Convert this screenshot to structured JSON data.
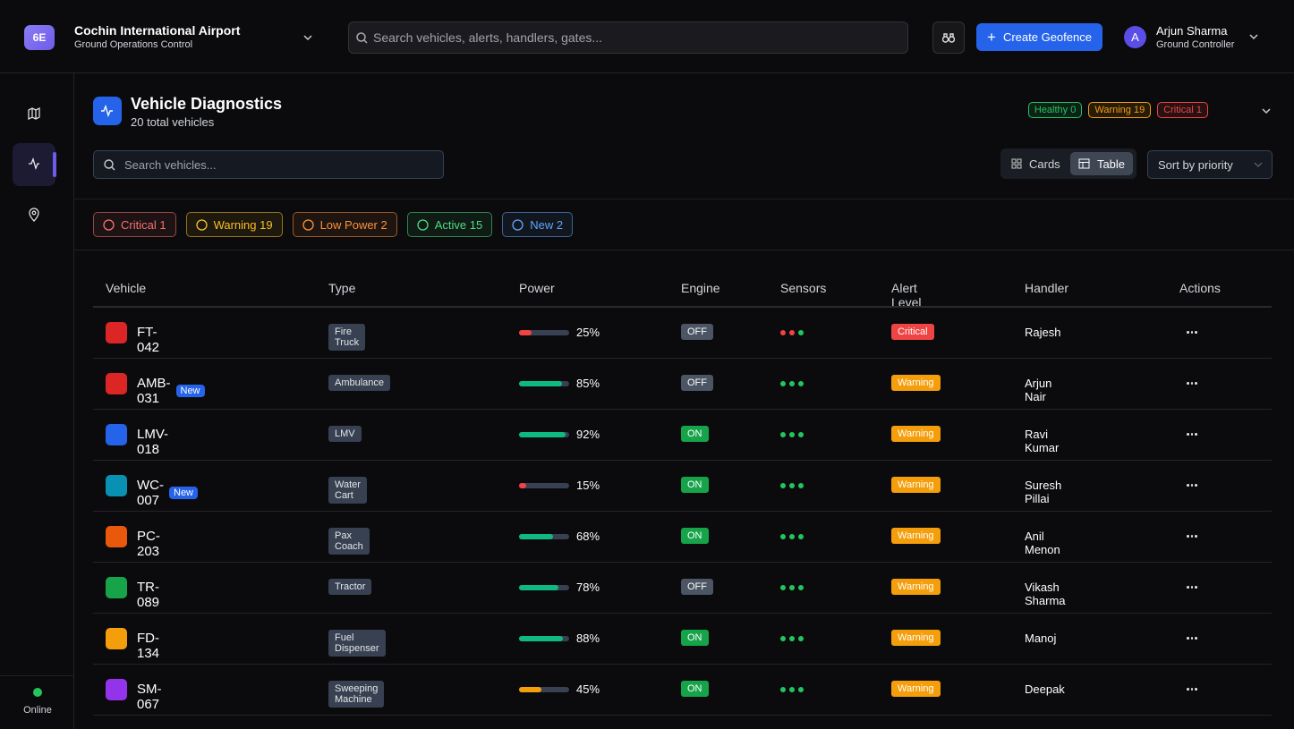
{
  "header": {
    "logo": "6E",
    "airport": "Cochin International Airport",
    "subtitle": "Ground Operations Control",
    "search_placeholder": "Search vehicles, alerts, handlers, gates...",
    "create_button": "Create Geofence",
    "user": {
      "initial": "A",
      "name": "Arjun Sharma",
      "role": "Ground Controller"
    }
  },
  "sidebar": {
    "status": "Online"
  },
  "panel": {
    "title": "Vehicle Diagnostics",
    "subtitle": "20 total vehicles",
    "summary": [
      {
        "label": "Healthy 0",
        "color": "#22c55e"
      },
      {
        "label": "Warning 19",
        "color": "#f59e0b"
      },
      {
        "label": "Critical 1",
        "color": "#ef4444"
      }
    ],
    "search_placeholder": "Search vehicles...",
    "views": [
      "Cards",
      "Table"
    ],
    "sort": "Sort by priority",
    "filters": [
      {
        "label": "Critical 1",
        "color": "#f87171"
      },
      {
        "label": "Warning 19",
        "color": "#fbbf24"
      },
      {
        "label": "Low Power 2",
        "color": "#fb923c"
      },
      {
        "label": "Active 15",
        "color": "#4ade80"
      },
      {
        "label": "New 2",
        "color": "#60a5fa"
      }
    ]
  },
  "table": {
    "columns": [
      "Vehicle",
      "Type",
      "Power",
      "Engine",
      "Sensors",
      "Alert Level",
      "Handler",
      "Actions"
    ],
    "rows": [
      {
        "vehicle": "FT-042",
        "icon_color": "#dc2626",
        "type": "Fire Truck",
        "power": 25,
        "power_label": "25%",
        "power_color": "#ef4444",
        "engine": "OFF",
        "engine_on": false,
        "sensors": [
          "#ef4444",
          "#ef4444",
          "#22c55e"
        ],
        "alert": "Critical",
        "alert_color": "#ef4444",
        "handler": "Rajesh"
      },
      {
        "vehicle": "AMB-031",
        "new": "New",
        "icon_color": "#dc2626",
        "type": "Ambulance",
        "power": 85,
        "power_label": "85%",
        "power_color": "#10b981",
        "engine": "OFF",
        "engine_on": false,
        "sensors": [
          "#22c55e",
          "#22c55e",
          "#22c55e"
        ],
        "alert": "Warning",
        "alert_color": "#f59e0b",
        "handler": "Arjun Nair"
      },
      {
        "vehicle": "LMV-018",
        "icon_color": "#2563eb",
        "type": "LMV",
        "power": 92,
        "power_label": "92%",
        "power_color": "#10b981",
        "engine": "ON",
        "engine_on": true,
        "sensors": [
          "#22c55e",
          "#22c55e",
          "#22c55e"
        ],
        "alert": "Warning",
        "alert_color": "#f59e0b",
        "handler": "Ravi Kumar"
      },
      {
        "vehicle": "WC-007",
        "new": "New",
        "icon_color": "#0891b2",
        "type": "Water Cart",
        "power": 15,
        "power_label": "15%",
        "power_color": "#ef4444",
        "engine": "ON",
        "engine_on": true,
        "sensors": [
          "#22c55e",
          "#22c55e",
          "#22c55e"
        ],
        "alert": "Warning",
        "alert_color": "#f59e0b",
        "handler": "Suresh Pillai"
      },
      {
        "vehicle": "PC-203",
        "icon_color": "#ea580c",
        "type": "Pax Coach",
        "power": 68,
        "power_label": "68%",
        "power_color": "#10b981",
        "engine": "ON",
        "engine_on": true,
        "sensors": [
          "#22c55e",
          "#22c55e",
          "#22c55e"
        ],
        "alert": "Warning",
        "alert_color": "#f59e0b",
        "handler": "Anil Menon"
      },
      {
        "vehicle": "TR-089",
        "icon_color": "#16a34a",
        "type": "Tractor",
        "power": 78,
        "power_label": "78%",
        "power_color": "#10b981",
        "engine": "OFF",
        "engine_on": false,
        "sensors": [
          "#22c55e",
          "#22c55e",
          "#22c55e"
        ],
        "alert": "Warning",
        "alert_color": "#f59e0b",
        "handler": "Vikash Sharma"
      },
      {
        "vehicle": "FD-134",
        "icon_color": "#f59e0b",
        "type": "Fuel Dispenser",
        "power": 88,
        "power_label": "88%",
        "power_color": "#10b981",
        "engine": "ON",
        "engine_on": true,
        "sensors": [
          "#22c55e",
          "#22c55e",
          "#22c55e"
        ],
        "alert": "Warning",
        "alert_color": "#f59e0b",
        "handler": "Manoj"
      },
      {
        "vehicle": "SM-067",
        "icon_color": "#9333ea",
        "type": "Sweeping Machine",
        "power": 45,
        "power_label": "45%",
        "power_color": "#f59e0b",
        "engine": "ON",
        "engine_on": true,
        "sensors": [
          "#22c55e",
          "#22c55e",
          "#22c55e"
        ],
        "alert": "Warning",
        "alert_color": "#f59e0b",
        "handler": "Deepak"
      }
    ]
  }
}
